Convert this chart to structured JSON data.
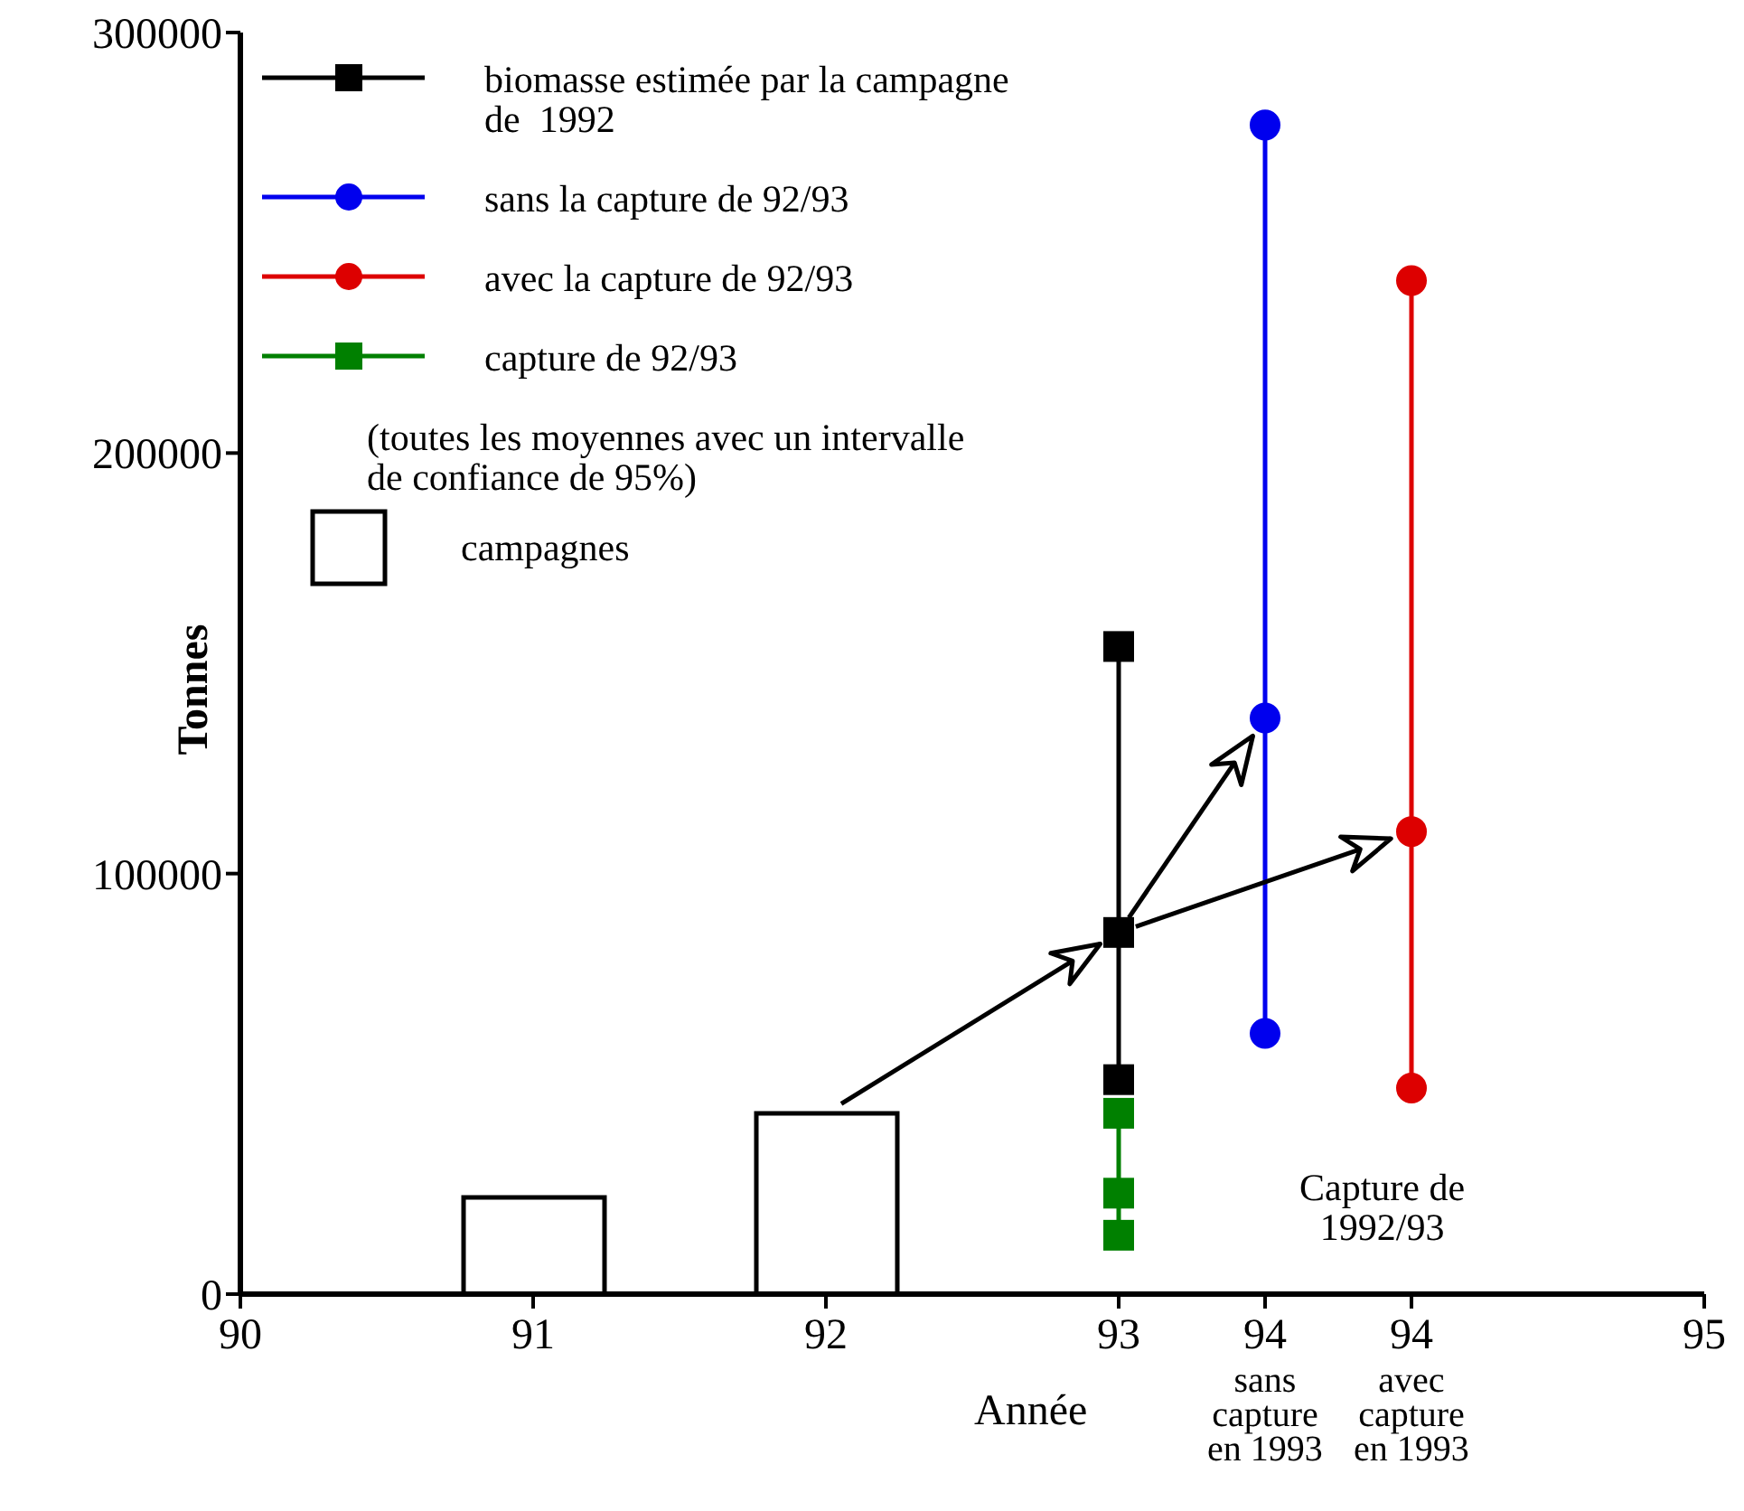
{
  "chart_data": {
    "type": "line",
    "xlabel": "Année",
    "ylabel": "Tonnes",
    "xlim": [
      90,
      95
    ],
    "xticks": [
      90,
      91,
      92,
      93,
      {
        "value": 93.5,
        "label": "94\nsans\ncapture\nen 1993"
      },
      {
        "value": 94,
        "label": "94\navec\ncapture\nen 1993"
      },
      95
    ],
    "ylim": [
      0,
      300000
    ],
    "yticks": [
      0,
      100000,
      200000,
      300000
    ],
    "series": [
      {
        "name": "biomasse estimée par la campagne\nde  1992",
        "color": "#000000",
        "marker": "square",
        "x": [
          93,
          93,
          93
        ],
        "values": [
          51000,
          86000,
          154000
        ]
      },
      {
        "name": "sans la capture de 92/93",
        "color": "#0000ee",
        "marker": "circle",
        "x": [
          93.5,
          93.5,
          93.5
        ],
        "values": [
          62000,
          137000,
          278000
        ]
      },
      {
        "name": "avec la capture de 92/93",
        "color": "#dd0000",
        "marker": "circle",
        "x": [
          94,
          94,
          94
        ],
        "values": [
          49000,
          110000,
          241000
        ]
      },
      {
        "name": "capture de 92/93",
        "color": "#008000",
        "marker": "square",
        "x": [
          93,
          93,
          93
        ],
        "values": [
          43000,
          24000,
          14000
        ]
      },
      {
        "name": "campagnes",
        "type": "bar",
        "color": "#000000",
        "x": [
          91,
          92
        ],
        "values": [
          23000,
          43000
        ]
      }
    ],
    "annotations": [
      "(toutes les moyennes avec un intervalle\nde confiance de 95%)",
      "Capture de\n1992/93"
    ],
    "legend": "top left",
    "grid": false
  }
}
